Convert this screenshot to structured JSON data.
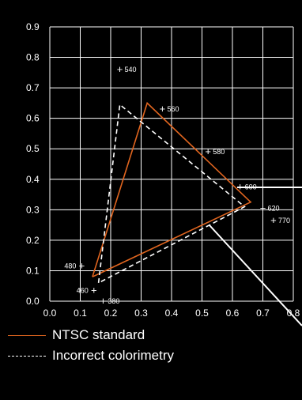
{
  "chart_data": {
    "type": "line",
    "xlim": [
      0,
      0.8
    ],
    "ylim": [
      0,
      0.9
    ],
    "x_ticks": [
      "0.0",
      "0.1",
      "0.2",
      "0.3",
      "0.4",
      "0.5",
      "0.6",
      "0.7",
      "0.8"
    ],
    "y_ticks": [
      "0.0",
      "0.1",
      "0.2",
      "0.3",
      "0.4",
      "0.5",
      "0.6",
      "0.7",
      "0.8",
      "0.9"
    ],
    "grid": true,
    "series": [
      {
        "name": "NTSC standard",
        "color": "#e0651f",
        "dash": "solid",
        "points": [
          [
            0.14,
            0.08
          ],
          [
            0.32,
            0.65
          ],
          [
            0.66,
            0.325
          ],
          [
            0.14,
            0.08
          ]
        ]
      },
      {
        "name": "Incorrect colorimetry",
        "color": "#ffffff",
        "dash": "dashed",
        "points": [
          [
            0.16,
            0.06
          ],
          [
            0.23,
            0.645
          ],
          [
            0.64,
            0.31
          ],
          [
            0.16,
            0.06
          ]
        ]
      }
    ],
    "annotations": [
      {
        "label": "540",
        "x": 0.23,
        "y": 0.76,
        "side": "right"
      },
      {
        "label": "560",
        "x": 0.37,
        "y": 0.63,
        "side": "right"
      },
      {
        "label": "580",
        "x": 0.52,
        "y": 0.49,
        "side": "right"
      },
      {
        "label": "600",
        "x": 0.625,
        "y": 0.375,
        "side": "right"
      },
      {
        "label": "620",
        "x": 0.7,
        "y": 0.305,
        "side": "right"
      },
      {
        "label": "770",
        "x": 0.735,
        "y": 0.265,
        "side": "right"
      },
      {
        "label": "480",
        "x": 0.105,
        "y": 0.115,
        "side": "left"
      },
      {
        "label": "460",
        "x": 0.145,
        "y": 0.035,
        "side": "left"
      },
      {
        "label": "380",
        "x": 0.175,
        "y": 0.0,
        "side": "right"
      }
    ],
    "legend_position": "bottom-left"
  }
}
